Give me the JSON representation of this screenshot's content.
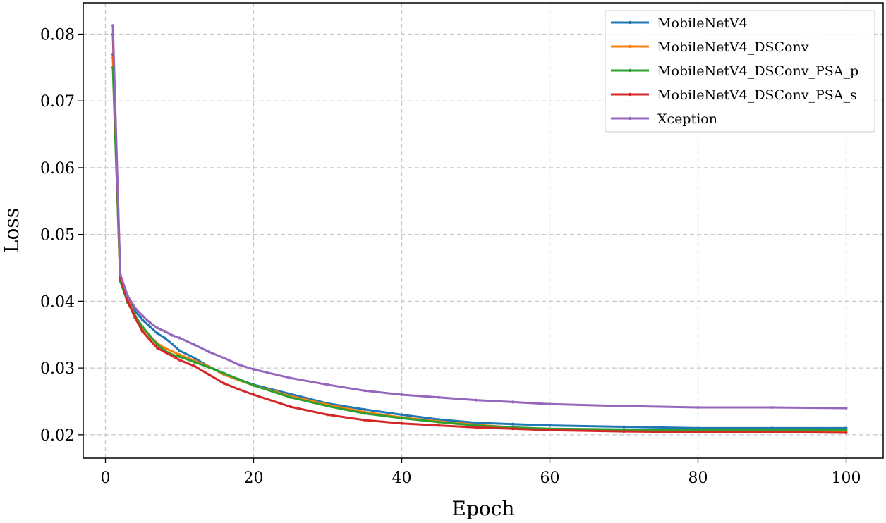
{
  "chart_data": {
    "type": "line",
    "title": "",
    "xlabel": "Epoch",
    "ylabel": "Loss",
    "xlim": [
      -3,
      105
    ],
    "ylim": [
      0.0165,
      0.0847
    ],
    "xticks": [
      0,
      20,
      40,
      60,
      80,
      100
    ],
    "yticks": [
      0.02,
      0.03,
      0.04,
      0.05,
      0.06,
      0.07,
      0.08
    ],
    "xtick_labels": [
      "0",
      "20",
      "40",
      "60",
      "80",
      "100"
    ],
    "ytick_labels": [
      "0.02",
      "0.03",
      "0.04",
      "0.05",
      "0.06",
      "0.07",
      "0.08"
    ],
    "grid": true,
    "legend_position": "top-right",
    "series": [
      {
        "name": "MobileNetV4",
        "color": "#1f77b4",
        "x": [
          1,
          2,
          3,
          4,
          5,
          6,
          7,
          8,
          9,
          10,
          12,
          14,
          16,
          18,
          20,
          25,
          30,
          35,
          40,
          45,
          50,
          55,
          60,
          70,
          80,
          90,
          100
        ],
        "y": [
          0.077,
          0.043,
          0.0405,
          0.0385,
          0.0372,
          0.0362,
          0.0352,
          0.0345,
          0.0336,
          0.0326,
          0.0315,
          0.0302,
          0.0292,
          0.0283,
          0.0275,
          0.0261,
          0.0247,
          0.0238,
          0.023,
          0.0223,
          0.0218,
          0.0216,
          0.0214,
          0.0212,
          0.021,
          0.021,
          0.021
        ]
      },
      {
        "name": "MobileNetV4_DSConv",
        "color": "#ff7f0e",
        "x": [
          1,
          2,
          3,
          4,
          5,
          6,
          7,
          8,
          9,
          10,
          12,
          14,
          16,
          18,
          20,
          25,
          30,
          35,
          40,
          45,
          50,
          55,
          60,
          70,
          80,
          90,
          100
        ],
        "y": [
          0.0765,
          0.0433,
          0.0402,
          0.0378,
          0.036,
          0.0348,
          0.0337,
          0.033,
          0.0325,
          0.032,
          0.0311,
          0.0302,
          0.029,
          0.0282,
          0.0274,
          0.0258,
          0.0245,
          0.0234,
          0.0226,
          0.022,
          0.0215,
          0.0211,
          0.0208,
          0.0207,
          0.0206,
          0.0206,
          0.0206
        ]
      },
      {
        "name": "MobileNetV4_DSConv_PSA_p",
        "color": "#2ca02c",
        "x": [
          1,
          2,
          3,
          4,
          5,
          6,
          7,
          8,
          9,
          10,
          12,
          14,
          16,
          18,
          20,
          25,
          30,
          35,
          40,
          45,
          50,
          55,
          60,
          70,
          80,
          90,
          100
        ],
        "y": [
          0.075,
          0.043,
          0.0398,
          0.0378,
          0.0362,
          0.0348,
          0.0335,
          0.0326,
          0.032,
          0.0317,
          0.0309,
          0.0301,
          0.0292,
          0.0283,
          0.0274,
          0.0256,
          0.0243,
          0.0232,
          0.0225,
          0.0219,
          0.0214,
          0.0211,
          0.0209,
          0.0208,
          0.0207,
          0.0207,
          0.0207
        ]
      },
      {
        "name": "MobileNetV4_DSConv_PSA_s",
        "color": "#d62728",
        "x": [
          1,
          2,
          3,
          4,
          5,
          6,
          7,
          8,
          9,
          10,
          12,
          14,
          16,
          18,
          20,
          25,
          30,
          35,
          40,
          45,
          50,
          55,
          60,
          70,
          80,
          90,
          100
        ],
        "y": [
          0.08,
          0.0435,
          0.04,
          0.0375,
          0.0355,
          0.0342,
          0.033,
          0.0324,
          0.0318,
          0.0312,
          0.0303,
          0.029,
          0.0277,
          0.0268,
          0.026,
          0.0242,
          0.023,
          0.0222,
          0.0217,
          0.0214,
          0.0211,
          0.0209,
          0.0207,
          0.0205,
          0.0204,
          0.0204,
          0.0203
        ]
      },
      {
        "name": "Xception",
        "color": "#9467bd",
        "x": [
          1,
          2,
          3,
          4,
          5,
          6,
          7,
          8,
          9,
          10,
          12,
          14,
          16,
          18,
          20,
          25,
          30,
          35,
          40,
          45,
          50,
          55,
          60,
          70,
          80,
          90,
          100
        ],
        "y": [
          0.0813,
          0.044,
          0.0408,
          0.039,
          0.0378,
          0.0368,
          0.036,
          0.0355,
          0.0349,
          0.0345,
          0.0335,
          0.0324,
          0.0315,
          0.0305,
          0.0298,
          0.0285,
          0.0275,
          0.0266,
          0.026,
          0.0256,
          0.0252,
          0.0249,
          0.0246,
          0.0243,
          0.0241,
          0.0241,
          0.024
        ]
      }
    ]
  }
}
